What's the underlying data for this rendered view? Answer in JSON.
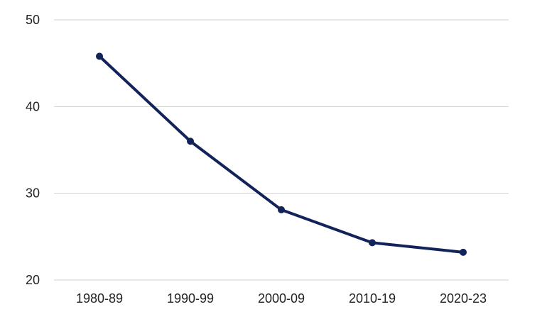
{
  "chart_data": {
    "type": "line",
    "categories": [
      "1980-89",
      "1990-99",
      "2000-09",
      "2010-19",
      "2020-23"
    ],
    "series": [
      {
        "values": [
          45.8,
          36.0,
          28.1,
          24.3,
          23.2
        ]
      }
    ],
    "y_ticks": [
      20,
      30,
      40,
      50
    ],
    "ylim": [
      20,
      50
    ],
    "title": "",
    "xlabel": "",
    "ylabel": "",
    "grid": true,
    "legend": "none",
    "colors": {
      "line": "#12235a",
      "grid": "#d0d0d0",
      "text": "#222222"
    }
  }
}
